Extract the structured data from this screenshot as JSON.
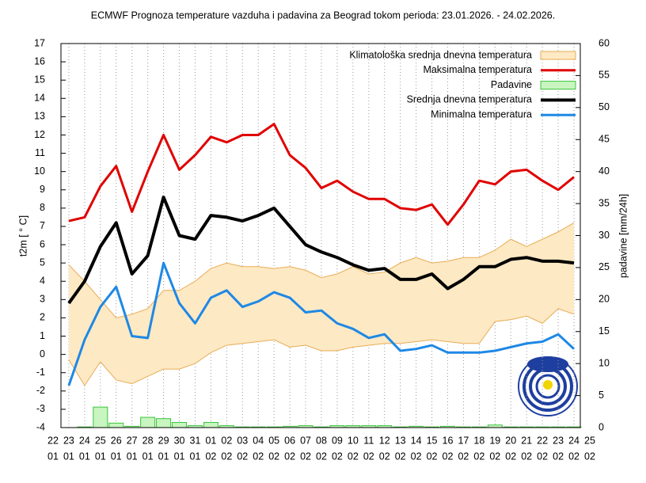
{
  "chart_data": {
    "type": "line",
    "title": "ECMWF Prognoza temperature vazduha i padavina za Beograd tokom perioda: 23.01.2026. - 24.02.2026.",
    "y_label": "t2m [ ° C]",
    "y2_label": "padavine [mm/24h]",
    "categories": [
      [
        "22",
        "01"
      ],
      [
        "23",
        "01"
      ],
      [
        "24",
        "01"
      ],
      [
        "25",
        "01"
      ],
      [
        "26",
        "01"
      ],
      [
        "27",
        "01"
      ],
      [
        "28",
        "01"
      ],
      [
        "29",
        "01"
      ],
      [
        "30",
        "01"
      ],
      [
        "31",
        "01"
      ],
      [
        "01",
        "02"
      ],
      [
        "02",
        "02"
      ],
      [
        "03",
        "02"
      ],
      [
        "04",
        "02"
      ],
      [
        "05",
        "02"
      ],
      [
        "06",
        "02"
      ],
      [
        "07",
        "02"
      ],
      [
        "08",
        "02"
      ],
      [
        "09",
        "02"
      ],
      [
        "10",
        "02"
      ],
      [
        "11",
        "02"
      ],
      [
        "12",
        "02"
      ],
      [
        "13",
        "02"
      ],
      [
        "14",
        "02"
      ],
      [
        "15",
        "02"
      ],
      [
        "16",
        "02"
      ],
      [
        "17",
        "02"
      ],
      [
        "18",
        "02"
      ],
      [
        "19",
        "02"
      ],
      [
        "20",
        "02"
      ],
      [
        "21",
        "02"
      ],
      [
        "22",
        "02"
      ],
      [
        "23",
        "02"
      ],
      [
        "24",
        "02"
      ],
      [
        "25",
        "02"
      ]
    ],
    "ylim": [
      -4,
      17
    ],
    "yticks": [
      -4,
      -3,
      -2,
      -1,
      0,
      1,
      2,
      3,
      4,
      5,
      6,
      7,
      8,
      9,
      10,
      11,
      12,
      13,
      14,
      15,
      16,
      17
    ],
    "y2lim": [
      0,
      60
    ],
    "y2ticks": [
      0,
      5,
      10,
      15,
      20,
      25,
      30,
      35,
      40,
      45,
      50,
      55,
      60
    ],
    "grid": true,
    "legend": "top-right",
    "series": [
      {
        "name": "Klimatološka srednja dnevna temperatura",
        "kind": "band",
        "color": "#fde9c4",
        "edge_color": "#e8ac55",
        "values": [
          null,
          4.9,
          4.0,
          3.0,
          2.0,
          2.2,
          2.5,
          3.5,
          3.5,
          4.0,
          4.7,
          5.0,
          4.8,
          4.8,
          4.7,
          4.8,
          4.6,
          4.2,
          4.4,
          4.8,
          4.4,
          4.5,
          5.0,
          5.3,
          5.0,
          5.1,
          5.3,
          5.3,
          5.7,
          6.3,
          5.9,
          6.3,
          6.7,
          7.2,
          null
        ],
        "lower": [
          null,
          -0.3,
          -1.7,
          -0.4,
          -1.4,
          -1.6,
          -1.2,
          -0.8,
          -0.8,
          -0.5,
          0.1,
          0.5,
          0.6,
          0.7,
          0.8,
          0.4,
          0.5,
          0.2,
          0.2,
          0.4,
          0.5,
          0.6,
          0.6,
          0.7,
          0.8,
          0.7,
          0.6,
          0.6,
          1.8,
          1.9,
          2.1,
          1.7,
          2.5,
          2.2,
          null
        ]
      },
      {
        "name": "Maksimalna temperatura",
        "kind": "line",
        "color": "#e00000",
        "width": 3,
        "values": [
          null,
          7.3,
          7.5,
          9.2,
          10.3,
          7.8,
          10.0,
          12.0,
          10.1,
          10.9,
          11.9,
          11.6,
          12.0,
          12.0,
          12.6,
          10.9,
          10.2,
          9.1,
          9.5,
          8.9,
          8.5,
          8.5,
          8.0,
          7.9,
          8.2,
          7.1,
          8.2,
          9.5,
          9.3,
          10.0,
          10.1,
          9.5,
          9.0,
          9.7,
          null
        ]
      },
      {
        "name": "Padavine",
        "kind": "bar",
        "axis": "y2",
        "color": "#c8f5c0",
        "edge_color": "#3bc43b",
        "values": [
          null,
          0,
          0.1,
          3.2,
          0.7,
          0.2,
          1.6,
          1.4,
          0.8,
          0.3,
          0.8,
          0.3,
          0.1,
          0.1,
          0.1,
          0.2,
          0.3,
          0.1,
          0.3,
          0.3,
          0.3,
          0.3,
          0.1,
          0.2,
          0.1,
          0.2,
          0.1,
          0.1,
          0.4,
          0.1,
          0.1,
          0.1,
          0.1,
          0.1,
          null
        ]
      },
      {
        "name": "Srednja dnevna temperatura",
        "kind": "line",
        "color": "#000000",
        "width": 4,
        "values": [
          null,
          2.8,
          4.0,
          5.9,
          7.2,
          4.4,
          5.4,
          8.6,
          6.5,
          6.3,
          7.6,
          7.5,
          7.3,
          7.6,
          8.0,
          7.0,
          6.0,
          5.6,
          5.3,
          4.9,
          4.6,
          4.7,
          4.1,
          4.1,
          4.4,
          3.6,
          4.1,
          4.8,
          4.8,
          5.2,
          5.3,
          5.1,
          5.1,
          5.0,
          null
        ]
      },
      {
        "name": "Minimalna temperatura",
        "kind": "line",
        "color": "#1e88e5",
        "width": 3,
        "values": [
          null,
          -1.7,
          0.8,
          2.6,
          3.7,
          1.0,
          0.9,
          5.0,
          2.8,
          1.7,
          3.1,
          3.5,
          2.6,
          2.9,
          3.4,
          3.1,
          2.3,
          2.4,
          1.7,
          1.4,
          0.9,
          1.1,
          0.2,
          0.3,
          0.5,
          0.1,
          0.1,
          0.1,
          0.2,
          0.4,
          0.6,
          0.7,
          1.1,
          0.3,
          null
        ]
      }
    ]
  }
}
